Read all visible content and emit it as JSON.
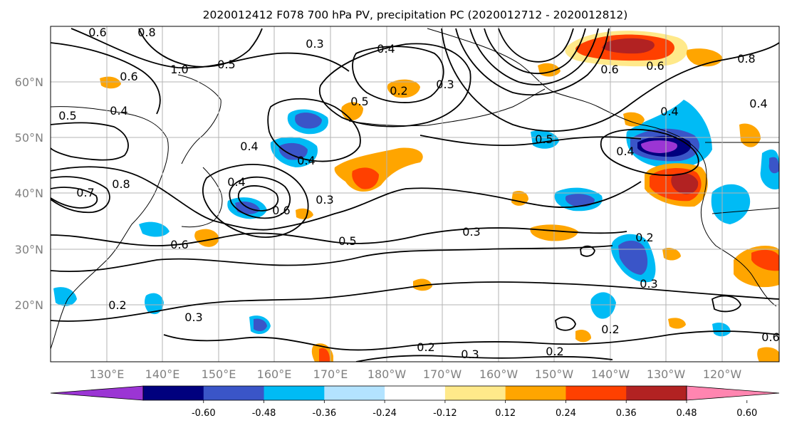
{
  "title": "2020012412 F078 700 hPa PV, precipitation PC (2020012712 - 2020012812)",
  "map": {
    "lat_labels": [
      "60°N",
      "50°N",
      "40°N",
      "30°N",
      "20°N"
    ],
    "lon_labels": [
      "130°E",
      "140°E",
      "150°E",
      "160°E",
      "170°E",
      "180°W",
      "170°W",
      "160°W",
      "150°W",
      "140°W",
      "130°W",
      "120°W"
    ],
    "contour_labels": [
      "0.6",
      "0.8",
      "0.3",
      "0.4",
      "0.5",
      "1.0",
      "0.6",
      "0.5",
      "0.4",
      "0.2",
      "0.5",
      "0.4",
      "0.4",
      "0.8",
      "0.4",
      "0.6",
      "0.6",
      "0.5",
      "0.4",
      "0.8",
      "0.3",
      "0.5",
      "0.3",
      "0.2",
      "0.3",
      "0.6",
      "0.7",
      "0.4",
      "0.6",
      "0.4",
      "0.2",
      "0.3",
      "0.3",
      "0.2",
      "0.2",
      "0.3",
      "0.2",
      "0.6"
    ],
    "colors": {
      "ocean": "#ffffff",
      "contour": "#000000",
      "grid": "#b3b3b3",
      "tick_label": "#808080"
    }
  },
  "colorbar": {
    "colors": [
      "#9b35d4",
      "#00007e",
      "#3a55c8",
      "#00bbf5",
      "#b3e3ff",
      "#ffffff",
      "#ffe98a",
      "#ffa500",
      "#ff4000",
      "#b22222",
      "#ff85b0"
    ],
    "tick_labels": [
      "-0.60",
      "-0.48",
      "-0.36",
      "-0.24",
      "-0.12",
      "0.12",
      "0.24",
      "0.36",
      "0.48",
      "0.60"
    ]
  },
  "anomalies": [
    {
      "color": "#ffa500",
      "level": 0.3
    },
    {
      "color": "#ff4000",
      "level": 0.42
    },
    {
      "color": "#3a55c8",
      "level": -0.42
    },
    {
      "color": "#00bbf5",
      "level": -0.3
    },
    {
      "color": "#9b35d4",
      "level": -0.66
    },
    {
      "color": "#b22222",
      "level": 0.54
    },
    {
      "color": "#ffe98a",
      "level": 0.18
    }
  ]
}
